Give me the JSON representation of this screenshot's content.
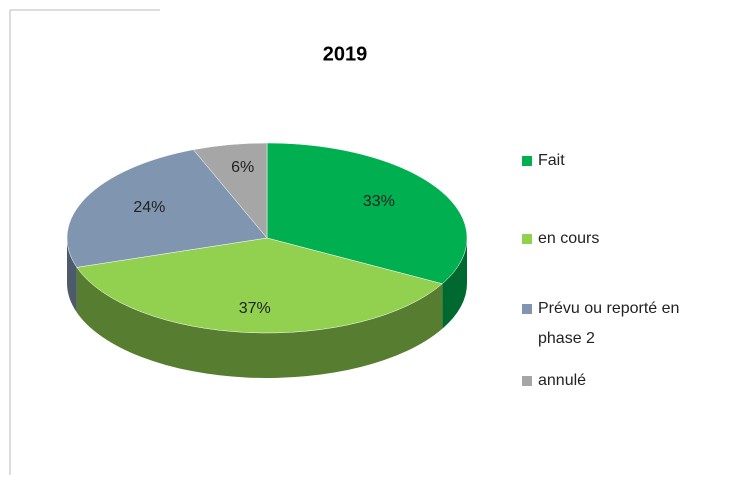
{
  "chart_data": {
    "type": "pie",
    "title": "2019",
    "categories": [
      "Fait",
      "en cours",
      "Prévu ou reporté en phase 2",
      "annulé"
    ],
    "values": [
      33,
      37,
      24,
      6
    ],
    "value_labels": [
      "33%",
      "37%",
      "24%",
      "6%"
    ],
    "colors": [
      "#00b050",
      "#92d050",
      "#8096b0",
      "#a6a6a6"
    ],
    "legend": "right"
  }
}
